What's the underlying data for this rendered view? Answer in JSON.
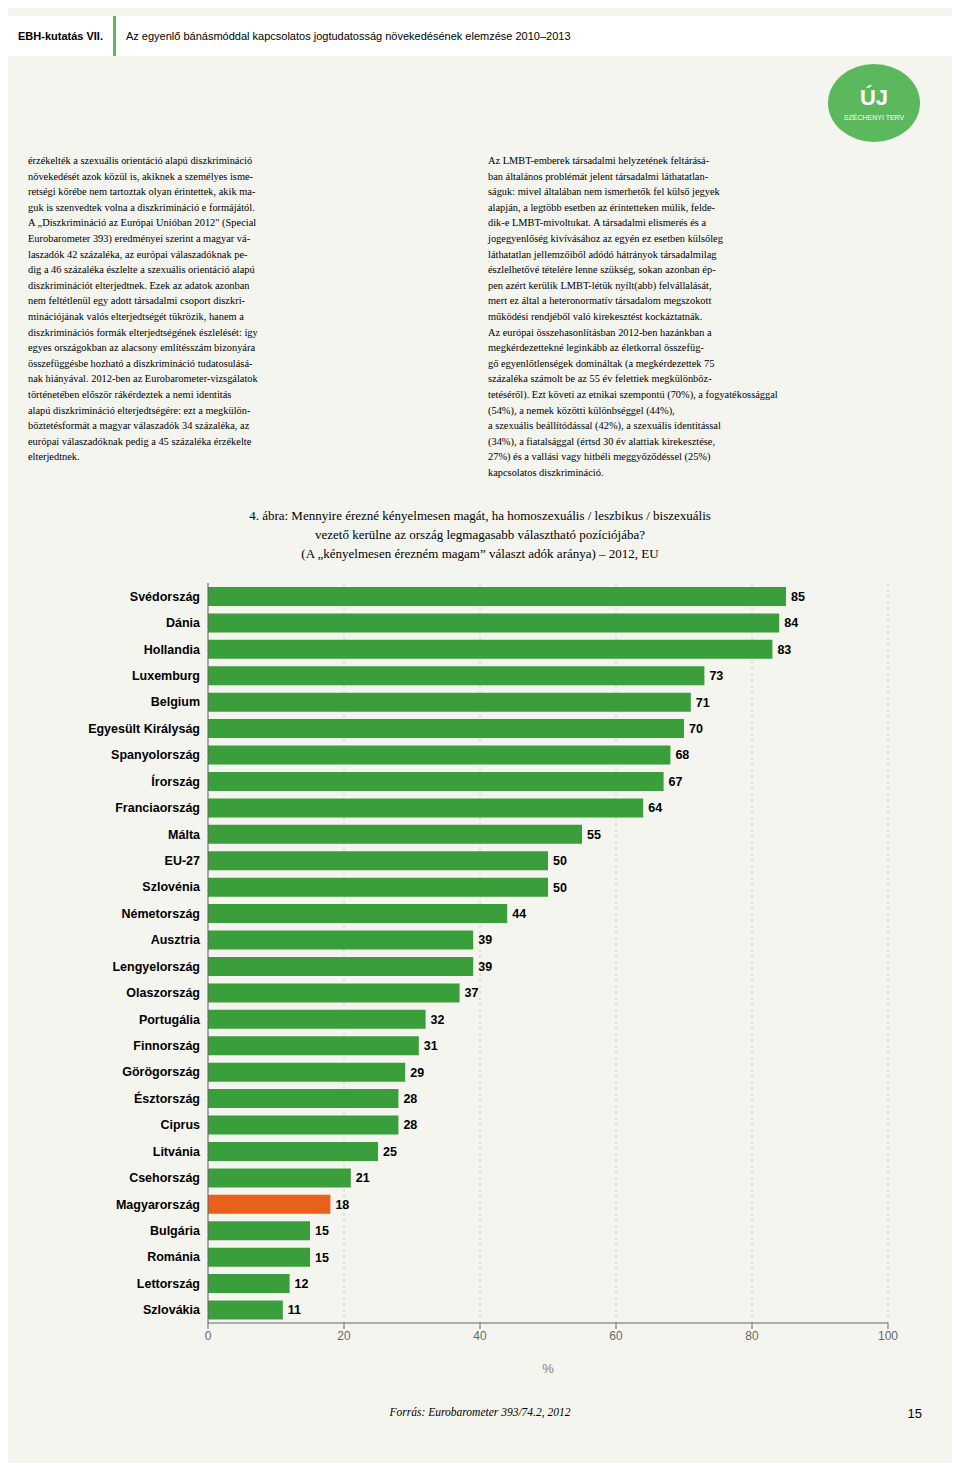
{
  "chart_data": {
    "type": "bar",
    "orientation": "horizontal",
    "title": [
      "4. ábra: Mennyire érezné kényelmesen magát, ha homoszexuális / leszbikus / biszexuális",
      "vezető kerülne az ország legmagasabb választható pozíciójába?",
      "(A „kényelmesen érezném magam” választ adók aránya) – 2012, EU"
    ],
    "x_label": "%",
    "categories": [
      "Svédország",
      "Dánia",
      "Hollandia",
      "Luxemburg",
      "Belgium",
      "Egyesült Királyság",
      "Spanyolország",
      "Írország",
      "Franciaország",
      "Málta",
      "EU-27",
      "Szlovénia",
      "Németország",
      "Ausztria",
      "Lengyelország",
      "Olaszország",
      "Portugália",
      "Finnország",
      "Görögország",
      "Észtország",
      "Ciprus",
      "Litvánia",
      "Csehország",
      "Magyarország",
      "Bulgária",
      "Románia",
      "Lettország",
      "Szlovákia"
    ],
    "values": [
      85,
      84,
      83,
      73,
      71,
      70,
      68,
      67,
      64,
      55,
      50,
      50,
      44,
      39,
      39,
      37,
      32,
      31,
      29,
      28,
      28,
      25,
      21,
      18,
      15,
      15,
      12,
      11
    ],
    "colors": [
      "#3a9e3a",
      "#3a9e3a",
      "#3a9e3a",
      "#3a9e3a",
      "#3a9e3a",
      "#3a9e3a",
      "#3a9e3a",
      "#3a9e3a",
      "#3a9e3a",
      "#3a9e3a",
      "#3a9e3a",
      "#3a9e3a",
      "#3a9e3a",
      "#3a9e3a",
      "#3a9e3a",
      "#3a9e3a",
      "#3a9e3a",
      "#3a9e3a",
      "#3a9e3a",
      "#3a9e3a",
      "#3a9e3a",
      "#3a9e3a",
      "#3a9e3a",
      "#e8611a",
      "#3a9e3a",
      "#3a9e3a",
      "#3a9e3a",
      "#3a9e3a"
    ],
    "xlim": [
      0,
      100
    ],
    "xticks": [
      0,
      20,
      40,
      60,
      80,
      100
    ],
    "grid": true,
    "data_labels": true,
    "annotations": [
      "EBH-kutatás VII.",
      "Az egyenlő bánásmóddal kapcsolatos jogtudatosság növekedésének elemzése 2010–2013",
      "ÚJ",
      "SZÉCHENYI TERV",
      "érzékelték a szexuális orientáció alapú diszkrimináció\nnövekedését azok közül is, akiknek a személyes isme-\nretségi körébe nem tartoztak olyan érintettek, akik ma-\nguk is szenvedtek volna a diszkrimináció e formájától.\nA „Diszkrimináció az Európai Unióban 2012\" (Special\nEurobarometer 393) eredményei szerint a magyar vá-\nlaszadók 42 százaléka, az európai válaszadóknak pe-\ndig a 46 százaléka észlelte a szexuális orientáció alapú\ndiszkriminációt elterjedtnek. Ezek az adatok azonban\nnem feltétlenül egy adott társadalmi csoport diszkri-\nminációjának valós elterjedtségét tükrözik, hanem a\ndiszkriminációs formák elterjedtségének észlelését: így\negyes országokban az alacsony említésszám bizonyára\nösszefüggésbe hozható a diszkrimináció tudatosulásá-\nnak hiányával. 2012-ben az Eurobarometer-vizsgálatok\ntörténetében először rákérdeztek a nemi identitás\nalapú diszkrimináció elterjedtségére: ezt a megkülön-\nböztetésformát a magyar válaszadók 34 százaléka, az\neurópai válaszadóknak pedig a 45 százaléka érzékelte\nelterjedtnek.",
      "Az LMBT-emberek társadalmi helyzetének feltárásá-\nban általános problémát jelent társadalmi láthatatlan-\nságuk: mivel általában nem ismerhetők fel külső jegyek\nalapján, a legtöbb esetben az érintetteken múlik, felde-\ndik-e LMBT-mivoltukat. A társadalmi elismerés és a\njogegyenlőség kivívásához az egyén ez esetben külsőleg\nláthatatlan jellemzőiből adódó hátrányok társadalmilag\nészlelhetővé tételére lenne szükség, sokan azonban ép-\npen azért kerülik LMBT-létük nyílt(abb) felvállalását,\nmert ez által a heteronormatív társadalom megszokott\nműködési rendjéből való kirekesztést kockáztatnák.\nAz európai összehasonlításban 2012-ben hazánkban a\nmegkérdezettekné leginkább az életkorral összefüg-\ngő egyenlőtlenségek domináltak (a megkérdezettek 75\nszázaléka számolt be az 55 év felettiek megkülönböz-\ntetéséről). Ezt követi az etnikai szempontú (70%), a fogyatékossággal\n(54%), a nemek közötti különbséggel (44%),\na szexuális beállítódással (42%), a szexuális identitással\n(34%), a fiatalsággal (értsd 30 év alattiak kirekesztése,\n27%) és a vallási vagy hitbéli meggyőződéssel (25%)\nkapcsolatos diszkrimináció.",
      "Forrás: Eurobarometer 393/74.2, 2012",
      "15"
    ]
  }
}
